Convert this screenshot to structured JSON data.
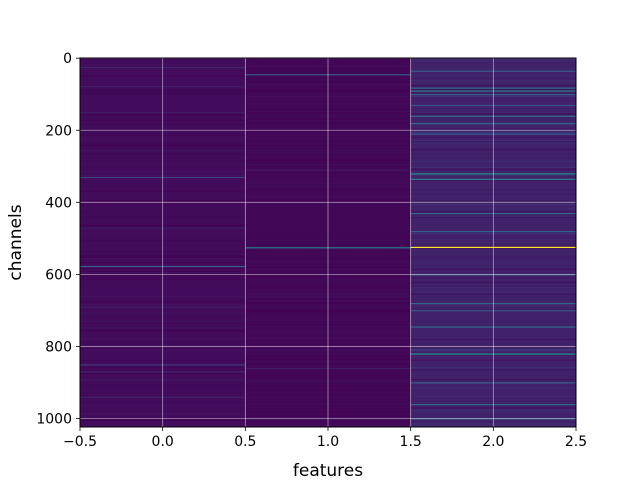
{
  "chart_data": {
    "type": "heatmap",
    "title": "",
    "xlabel": "features",
    "ylabel": "channels",
    "xlim": [
      -0.5,
      2.5
    ],
    "ylim": [
      1023.5,
      -0.5
    ],
    "n_rows": 1024,
    "n_cols": 3,
    "colormap": "viridis",
    "grid": true,
    "x_ticks": [
      -0.5,
      0.0,
      0.5,
      1.0,
      1.5,
      2.0,
      2.5
    ],
    "x_tick_labels": [
      "−0.5",
      "0.0",
      "0.5",
      "1.0",
      "1.5",
      "2.0",
      "2.5"
    ],
    "y_ticks": [
      0,
      200,
      400,
      600,
      800,
      1000
    ],
    "y_tick_labels": [
      "0",
      "200",
      "400",
      "600",
      "800",
      "1000"
    ],
    "columns": [
      {
        "feature": 0,
        "base_level": 0.03,
        "highlight_rows": [
          {
            "channel": 25,
            "value": 0.12
          },
          {
            "channel": 78,
            "value": 0.09
          },
          {
            "channel": 150,
            "value": 0.08
          },
          {
            "channel": 330,
            "value": 0.2
          },
          {
            "channel": 470,
            "value": 0.1
          },
          {
            "channel": 577,
            "value": 0.3
          },
          {
            "channel": 690,
            "value": 0.09
          },
          {
            "channel": 850,
            "value": 0.18
          },
          {
            "channel": 870,
            "value": 0.12
          },
          {
            "channel": 940,
            "value": 0.1
          }
        ]
      },
      {
        "feature": 1,
        "base_level": 0.02,
        "highlight_rows": [
          {
            "channel": 45,
            "value": 0.3
          },
          {
            "channel": 310,
            "value": 0.07
          },
          {
            "channel": 525,
            "value": 0.42
          },
          {
            "channel": 860,
            "value": 0.08
          }
        ]
      },
      {
        "feature": 2,
        "base_level": 0.1,
        "highlight_rows": [
          {
            "channel": 35,
            "value": 0.3
          },
          {
            "channel": 82,
            "value": 0.35
          },
          {
            "channel": 90,
            "value": 0.45
          },
          {
            "channel": 100,
            "value": 0.3
          },
          {
            "channel": 130,
            "value": 0.25
          },
          {
            "channel": 160,
            "value": 0.38
          },
          {
            "channel": 180,
            "value": 0.3
          },
          {
            "channel": 210,
            "value": 0.25
          },
          {
            "channel": 320,
            "value": 0.5
          },
          {
            "channel": 335,
            "value": 0.45
          },
          {
            "channel": 430,
            "value": 0.35
          },
          {
            "channel": 480,
            "value": 0.3
          },
          {
            "channel": 524,
            "value": 1.0
          },
          {
            "channel": 600,
            "value": 0.3
          },
          {
            "channel": 680,
            "value": 0.35
          },
          {
            "channel": 700,
            "value": 0.3
          },
          {
            "channel": 745,
            "value": 0.35
          },
          {
            "channel": 820,
            "value": 0.5
          },
          {
            "channel": 900,
            "value": 0.3
          },
          {
            "channel": 960,
            "value": 0.35
          },
          {
            "channel": 1000,
            "value": 0.3
          }
        ]
      }
    ]
  }
}
